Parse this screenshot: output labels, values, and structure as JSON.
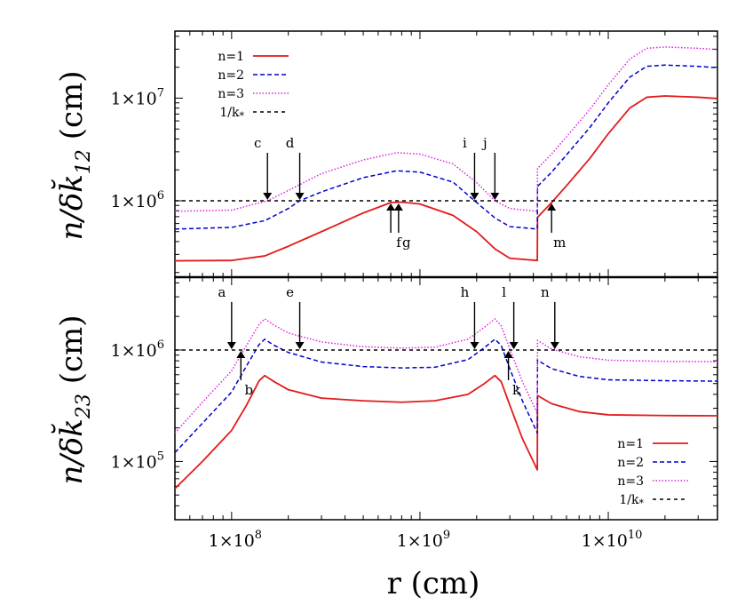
{
  "chart_data": [
    {
      "type": "line",
      "panel": "top",
      "ylabel": "n/δk̆",
      "ylabel_sub": "12",
      "ylabel_unit": " (cm)",
      "xscale": "log",
      "yscale": "log",
      "xlim": [
        50000000,
        38000000000
      ],
      "ylim": [
        180000,
        45000000
      ],
      "yticks": [
        {
          "value": 1000000,
          "label": "1×10",
          "exp": "6"
        },
        {
          "value": 10000000,
          "label": "1×10",
          "exp": "7"
        }
      ],
      "legend_position": "top-left",
      "series": [
        {
          "name": "n=1",
          "color": "#e31a1c",
          "style": "solid",
          "points": [
            [
              50000000.0,
              260000.0
            ],
            [
              100000000.0,
              262000.0
            ],
            [
              150000000.0,
              290000.0
            ],
            [
              200000000.0,
              360000.0
            ],
            [
              300000000.0,
              500000.0
            ],
            [
              500000000.0,
              760000.0
            ],
            [
              700000000.0,
              960000.0
            ],
            [
              800000000.0,
              970000.0
            ],
            [
              1000000000.0,
              930000.0
            ],
            [
              1500000000.0,
              720000.0
            ],
            [
              2000000000.0,
              500000.0
            ],
            [
              2500000000.0,
              340000.0
            ],
            [
              3000000000.0,
              275000.0
            ],
            [
              4200000000.0,
              262000.0
            ],
            [
              4210000000.0,
              690000.0
            ],
            [
              5000000000.0,
              960000.0
            ],
            [
              6000000000.0,
              1400000.0
            ],
            [
              8000000000.0,
              2600000.0
            ],
            [
              10000000000.0,
              4500000.0
            ],
            [
              13000000000.0,
              8000000.0
            ],
            [
              16000000000.0,
              10200000.0
            ],
            [
              20000000000.0,
              10500000.0
            ],
            [
              30000000000.0,
              10200000.0
            ],
            [
              38000000000.0,
              9900000.0
            ]
          ]
        },
        {
          "name": "n=2",
          "color": "#0000cc",
          "style": "dash",
          "points": [
            [
              50000000.0,
              530000.0
            ],
            [
              100000000.0,
              550000.0
            ],
            [
              150000000.0,
              640000.0
            ],
            [
              200000000.0,
              840000.0
            ],
            [
              230000000.0,
              1000000.0
            ],
            [
              300000000.0,
              1220000.0
            ],
            [
              500000000.0,
              1680000.0
            ],
            [
              750000000.0,
              1960000.0
            ],
            [
              1000000000.0,
              1900000.0
            ],
            [
              1500000000.0,
              1520000.0
            ],
            [
              1950000000.0,
              1000000.0
            ],
            [
              2500000000.0,
              680000.0
            ],
            [
              3000000000.0,
              560000.0
            ],
            [
              4200000000.0,
              530000.0
            ],
            [
              4210000000.0,
              1380000.0
            ],
            [
              5000000000.0,
              1900000.0
            ],
            [
              6000000000.0,
              2800000.0
            ],
            [
              8000000000.0,
              5200000.0
            ],
            [
              10000000000.0,
              9000000.0
            ],
            [
              13000000000.0,
              16000000.0
            ],
            [
              16000000000.0,
              20400000.0
            ],
            [
              20000000000.0,
              21000000.0
            ],
            [
              30000000000.0,
              20400000.0
            ],
            [
              38000000000.0,
              19800000.0
            ]
          ]
        },
        {
          "name": "n=3",
          "color": "#dd22dd",
          "style": "dot",
          "points": [
            [
              50000000.0,
              790000.0
            ],
            [
              100000000.0,
              810000.0
            ],
            [
              155000000.0,
              1000000.0
            ],
            [
              200000000.0,
              1260000.0
            ],
            [
              300000000.0,
              1840000.0
            ],
            [
              500000000.0,
              2500000.0
            ],
            [
              750000000.0,
              2940000.0
            ],
            [
              1000000000.0,
              2850000.0
            ],
            [
              1500000000.0,
              2280000.0
            ],
            [
              2000000000.0,
              1500000.0
            ],
            [
              2500000000.0,
              1000000.0
            ],
            [
              3000000000.0,
              840000.0
            ],
            [
              4200000000.0,
              790000.0
            ],
            [
              4210000000.0,
              2070000.0
            ],
            [
              5000000000.0,
              2850000.0
            ],
            [
              6000000000.0,
              4200000.0
            ],
            [
              8000000000.0,
              7800000.0
            ],
            [
              10000000000.0,
              13500000.0
            ],
            [
              13000000000.0,
              24000000.0
            ],
            [
              16000000000.0,
              30600000.0
            ],
            [
              20000000000.0,
              31500000.0
            ],
            [
              30000000000.0,
              30600000.0
            ],
            [
              38000000000.0,
              29700000.0
            ]
          ]
        },
        {
          "name": "1/k",
          "name_sub": "*",
          "color": "#000000",
          "style": "dash-small",
          "points": [
            [
              50000000.0,
              1000000.0
            ],
            [
              38000000000.0,
              1000000.0
            ]
          ]
        }
      ],
      "annotations": [
        {
          "label": "c",
          "x": 155000000.0,
          "y": 1000000.0,
          "direction": "down"
        },
        {
          "label": "d",
          "x": 230000000.0,
          "y": 1000000.0,
          "direction": "down"
        },
        {
          "label": "f",
          "x": 700000000.0,
          "y": 960000.0,
          "direction": "up"
        },
        {
          "label": "g",
          "x": 770000000.0,
          "y": 960000.0,
          "direction": "up"
        },
        {
          "label": "i",
          "x": 1950000000.0,
          "y": 1000000.0,
          "direction": "down"
        },
        {
          "label": "j",
          "x": 2500000000.0,
          "y": 1000000.0,
          "direction": "down"
        },
        {
          "label": "m",
          "x": 5000000000.0,
          "y": 960000.0,
          "direction": "up"
        }
      ]
    },
    {
      "type": "line",
      "panel": "bottom",
      "xlabel": "r (cm)",
      "ylabel": "n/δk̆",
      "ylabel_sub": "23",
      "ylabel_unit": " (cm)",
      "xscale": "log",
      "yscale": "log",
      "xlim": [
        50000000,
        38000000000
      ],
      "ylim": [
        30000,
        4500000
      ],
      "xticks": [
        {
          "value": 100000000,
          "label": "1×10",
          "exp": "8"
        },
        {
          "value": 1000000000,
          "label": "1×10",
          "exp": "9"
        },
        {
          "value": 10000000000,
          "label": "1×10",
          "exp": "10"
        }
      ],
      "yticks": [
        {
          "value": 100000,
          "label": "1×10",
          "exp": "5"
        },
        {
          "value": 1000000,
          "label": "1×10",
          "exp": "6"
        }
      ],
      "legend_position": "bottom-right",
      "series": [
        {
          "name": "n=1",
          "color": "#e31a1c",
          "style": "solid",
          "points": [
            [
              50000000.0,
              57000.0
            ],
            [
              70000000.0,
              100000.0
            ],
            [
              100000000.0,
              190000.0
            ],
            [
              120000000.0,
              320000.0
            ],
            [
              140000000.0,
              530000.0
            ],
            [
              150000000.0,
              590000.0
            ],
            [
              165000000.0,
              530000.0
            ],
            [
              200000000.0,
              440000.0
            ],
            [
              300000000.0,
              370000.0
            ],
            [
              500000000.0,
              350000.0
            ],
            [
              800000000.0,
              340000.0
            ],
            [
              1200000000.0,
              350000.0
            ],
            [
              1800000000.0,
              400000.0
            ],
            [
              2200000000.0,
              500000.0
            ],
            [
              2500000000.0,
              590000.0
            ],
            [
              2700000000.0,
              520000.0
            ],
            [
              3000000000.0,
              320000.0
            ],
            [
              3500000000.0,
              160000.0
            ],
            [
              4200000000.0,
              84000.0
            ],
            [
              4210000000.0,
              390000.0
            ],
            [
              5000000000.0,
              330000.0
            ],
            [
              7000000000.0,
              280000.0
            ],
            [
              10000000000.0,
              262000.0
            ],
            [
              20000000000.0,
              258000.0
            ],
            [
              38000000000.0,
              257000.0
            ]
          ]
        },
        {
          "name": "n=2",
          "color": "#0000cc",
          "style": "dash",
          "points": [
            [
              50000000.0,
              120000.0
            ],
            [
              70000000.0,
              220000.0
            ],
            [
              100000000.0,
              420000.0
            ],
            [
              120000000.0,
              720000.0
            ],
            [
              140000000.0,
              1120000.0
            ],
            [
              150000000.0,
              1250000.0
            ],
            [
              165000000.0,
              1120000.0
            ],
            [
              200000000.0,
              950000.0
            ],
            [
              300000000.0,
              780000.0
            ],
            [
              500000000.0,
              710000.0
            ],
            [
              800000000.0,
              690000.0
            ],
            [
              1200000000.0,
              700000.0
            ],
            [
              1800000000.0,
              820000.0
            ],
            [
              2200000000.0,
              1050000.0
            ],
            [
              2500000000.0,
              1250000.0
            ],
            [
              2700000000.0,
              1100000.0
            ],
            [
              3000000000.0,
              680000.0
            ],
            [
              3500000000.0,
              350000.0
            ],
            [
              4200000000.0,
              180000.0
            ],
            [
              4210000000.0,
              810000.0
            ],
            [
              5000000000.0,
              680000.0
            ],
            [
              7000000000.0,
              580000.0
            ],
            [
              10000000000.0,
              540000.0
            ],
            [
              20000000000.0,
              530000.0
            ],
            [
              38000000000.0,
              525000.0
            ]
          ]
        },
        {
          "name": "n=3",
          "color": "#dd22dd",
          "style": "dot",
          "points": [
            [
              50000000.0,
              180000.0
            ],
            [
              70000000.0,
              340000.0
            ],
            [
              100000000.0,
              650000.0
            ],
            [
              120000000.0,
              1100000.0
            ],
            [
              140000000.0,
              1700000.0
            ],
            [
              150000000.0,
              1900000.0
            ],
            [
              165000000.0,
              1700000.0
            ],
            [
              200000000.0,
              1420000.0
            ],
            [
              300000000.0,
              1180000.0
            ],
            [
              500000000.0,
              1070000.0
            ],
            [
              800000000.0,
              1040000.0
            ],
            [
              1200000000.0,
              1060000.0
            ],
            [
              1800000000.0,
              1250000.0
            ],
            [
              2200000000.0,
              1600000.0
            ],
            [
              2500000000.0,
              1900000.0
            ],
            [
              2700000000.0,
              1650000.0
            ],
            [
              3000000000.0,
              1020000.0
            ],
            [
              3500000000.0,
              520000.0
            ],
            [
              4200000000.0,
              270000.0
            ],
            [
              4210000000.0,
              1220000.0
            ],
            [
              5000000000.0,
              1020000.0
            ],
            [
              7000000000.0,
              870000.0
            ],
            [
              10000000000.0,
              810000.0
            ],
            [
              20000000000.0,
              790000.0
            ],
            [
              38000000000.0,
              785000.0
            ]
          ]
        },
        {
          "name": "1/k",
          "name_sub": "*",
          "color": "#000000",
          "style": "dash-small",
          "points": [
            [
              50000000.0,
              1000000.0
            ],
            [
              38000000000.0,
              1000000.0
            ]
          ]
        }
      ],
      "annotations": [
        {
          "label": "a",
          "x": 100000000.0,
          "y": 1000000.0,
          "direction": "down"
        },
        {
          "label": "b",
          "x": 112000000.0,
          "y": 1000000.0,
          "direction": "up"
        },
        {
          "label": "e",
          "x": 230000000.0,
          "y": 1000000.0,
          "direction": "down"
        },
        {
          "label": "h",
          "x": 1950000000.0,
          "y": 1000000.0,
          "direction": "down"
        },
        {
          "label": "k",
          "x": 2950000000.0,
          "y": 1000000.0,
          "direction": "up"
        },
        {
          "label": "l",
          "x": 3150000000.0,
          "y": 1000000.0,
          "direction": "down"
        },
        {
          "label": "n",
          "x": 5200000000.0,
          "y": 1000000.0,
          "direction": "down"
        }
      ]
    }
  ]
}
